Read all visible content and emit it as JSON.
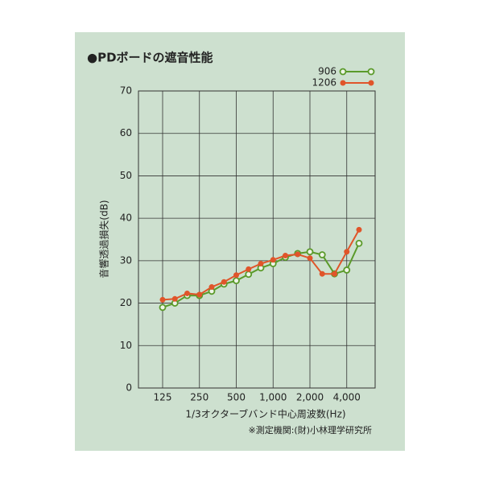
{
  "chart_data": {
    "type": "line",
    "title": "●PDボードの遮音性能",
    "y_label": "音響透過損失(dB)",
    "x_label": "1/3オクターブバンド中心周波数(Hz)",
    "note": "※測定機関:(財)小林理学研究所",
    "categories": [
      "125",
      null,
      null,
      "250",
      null,
      null,
      "500",
      null,
      null,
      "1,000",
      null,
      null,
      "2,000",
      null,
      null,
      "4,000",
      null
    ],
    "series": [
      {
        "name": "906",
        "color": "#5a9a2a",
        "values": [
          19,
          20,
          21.8,
          21.8,
          22.8,
          24.5,
          25.3,
          26.8,
          28.3,
          29.3,
          30.8,
          31.7,
          32.1,
          31.4,
          26.9,
          27.8,
          34.1
        ]
      },
      {
        "name": "1206",
        "color": "#e0552a",
        "values": [
          20.8,
          21,
          22.3,
          22,
          23.8,
          25,
          26.6,
          28,
          29.3,
          30.2,
          31.2,
          31.5,
          30.6,
          26.9,
          26.9,
          32.1,
          37.3
        ]
      }
    ],
    "ylim": [
      0,
      70
    ],
    "yticks": [
      0,
      10,
      20,
      30,
      40,
      50,
      60,
      70
    ],
    "grid": true
  }
}
